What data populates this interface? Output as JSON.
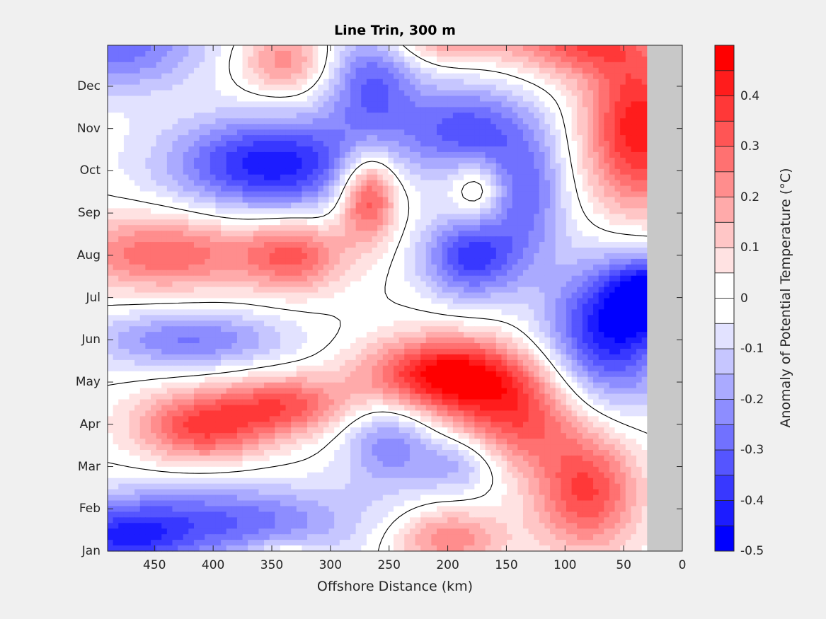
{
  "chart_data": {
    "type": "heatmap",
    "subtype": "filled-contour",
    "title": "Line Trin, 300 m",
    "xlabel": "Offshore Distance (km)",
    "ylabel": "",
    "xlim": [
      490,
      0
    ],
    "ylim": [
      1,
      12.97
    ],
    "x_ticks": [
      450,
      400,
      350,
      300,
      250,
      200,
      150,
      100,
      50,
      0
    ],
    "x_tick_labels": [
      "450",
      "400",
      "350",
      "300",
      "250",
      "200",
      "150",
      "100",
      "50",
      "0"
    ],
    "y_ticks": [
      1,
      2,
      3,
      4,
      5,
      6,
      7,
      8,
      9,
      10,
      11,
      12
    ],
    "y_tick_labels": [
      "Jan",
      "Feb",
      "Mar",
      "Apr",
      "May",
      "Jun",
      "Jul",
      "Aug",
      "Sep",
      "Oct",
      "Nov",
      "Dec"
    ],
    "land_mask_km": [
      30,
      0
    ],
    "land_color": "#c8c8c8",
    "zero_contour_color": "#000000",
    "colorbar": {
      "label": "Anomaly of Potential Temperature (°C)",
      "range": [
        -0.5,
        0.5
      ],
      "levels": [
        -0.5,
        -0.45,
        -0.4,
        -0.35,
        -0.3,
        -0.25,
        -0.2,
        -0.15,
        -0.1,
        -0.05,
        0,
        0.05,
        0.1,
        0.15,
        0.2,
        0.25,
        0.3,
        0.35,
        0.4,
        0.45,
        0.5
      ],
      "tick_values": [
        -0.5,
        -0.4,
        -0.3,
        -0.2,
        -0.1,
        0,
        0.1,
        0.2,
        0.3,
        0.4
      ],
      "tick_labels": [
        "-0.5",
        "-0.4",
        "-0.3",
        "-0.2",
        "-0.1",
        "0",
        "0.1",
        "0.2",
        "0.3",
        "0.4"
      ],
      "band_colors": [
        "#0000ff",
        "#1c1cff",
        "#3838ff",
        "#5555ff",
        "#7171ff",
        "#8d8dff",
        "#aaaaff",
        "#c6c6ff",
        "#e2e2ff",
        "#ffffff",
        "#ffffff",
        "#ffe2e2",
        "#ffc6c6",
        "#ffaaaa",
        "#ff8d8d",
        "#ff7171",
        "#ff5555",
        "#ff3838",
        "#ff1c1c",
        "#ff0000"
      ]
    },
    "features": [
      {
        "km": 490,
        "month": 13.0,
        "anomaly": -0.3,
        "sx": 60,
        "sy": 0.8
      },
      {
        "km": 340,
        "month": 12.6,
        "anomaly": 0.24,
        "sx": 28,
        "sy": 0.55
      },
      {
        "km": 265,
        "month": 12.1,
        "anomaly": -0.3,
        "sx": 28,
        "sy": 1.0
      },
      {
        "km": 185,
        "month": 11.0,
        "anomaly": -0.32,
        "sx": 38,
        "sy": 0.75
      },
      {
        "km": 38,
        "month": 11.0,
        "anomaly": 0.44,
        "sx": 32,
        "sy": 1.4
      },
      {
        "km": 90,
        "month": 13.1,
        "anomaly": 0.32,
        "sx": 40,
        "sy": 0.6
      },
      {
        "km": 200,
        "month": 13.2,
        "anomaly": 0.24,
        "sx": 40,
        "sy": 0.45
      },
      {
        "km": 350,
        "month": 10.15,
        "anomaly": -0.44,
        "sx": 62,
        "sy": 0.8
      },
      {
        "km": 268,
        "month": 9.45,
        "anomaly": 0.42,
        "sx": 18,
        "sy": 0.75
      },
      {
        "km": 175,
        "month": 9.55,
        "anomaly": 0.16,
        "sx": 14,
        "sy": 0.45
      },
      {
        "km": 132,
        "month": 9.5,
        "anomaly": -0.26,
        "sx": 24,
        "sy": 1.1
      },
      {
        "km": 440,
        "month": 8.05,
        "anomaly": 0.3,
        "sx": 60,
        "sy": 0.65
      },
      {
        "km": 330,
        "month": 8.0,
        "anomaly": 0.28,
        "sx": 30,
        "sy": 0.6
      },
      {
        "km": 180,
        "month": 7.95,
        "anomaly": -0.37,
        "sx": 30,
        "sy": 0.7
      },
      {
        "km": 62,
        "month": 6.2,
        "anomaly": -0.44,
        "sx": 38,
        "sy": 1.2
      },
      {
        "km": 30,
        "month": 7.1,
        "anomaly": -0.36,
        "sx": 22,
        "sy": 0.6
      },
      {
        "km": 420,
        "month": 6.0,
        "anomaly": -0.26,
        "sx": 60,
        "sy": 0.5
      },
      {
        "km": 200,
        "month": 5.15,
        "anomaly": 0.5,
        "sx": 50,
        "sy": 0.65
      },
      {
        "km": 140,
        "month": 4.1,
        "anomaly": 0.3,
        "sx": 38,
        "sy": 0.8
      },
      {
        "km": 82,
        "month": 2.4,
        "anomaly": 0.36,
        "sx": 32,
        "sy": 1.0
      },
      {
        "km": 410,
        "month": 3.95,
        "anomaly": 0.36,
        "sx": 40,
        "sy": 0.6
      },
      {
        "km": 338,
        "month": 4.45,
        "anomaly": 0.3,
        "sx": 38,
        "sy": 0.5
      },
      {
        "km": 250,
        "month": 3.55,
        "anomaly": -0.24,
        "sx": 28,
        "sy": 0.75
      },
      {
        "km": 190,
        "month": 3.05,
        "anomaly": -0.18,
        "sx": 24,
        "sy": 0.5
      },
      {
        "km": 395,
        "month": 1.7,
        "anomaly": -0.3,
        "sx": 85,
        "sy": 0.65
      },
      {
        "km": 480,
        "month": 1.2,
        "anomaly": -0.28,
        "sx": 40,
        "sy": 0.6
      },
      {
        "km": 200,
        "month": 1.3,
        "anomaly": 0.26,
        "sx": 34,
        "sy": 0.5
      },
      {
        "km": 340,
        "month": 0.8,
        "anomaly": 0.16,
        "sx": 20,
        "sy": 0.3
      }
    ]
  }
}
